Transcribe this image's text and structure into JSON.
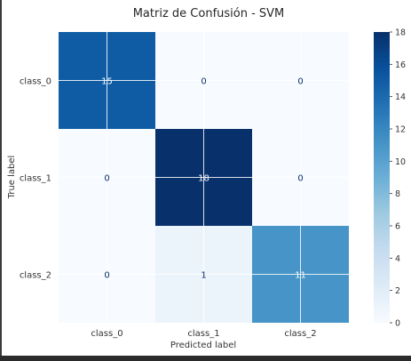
{
  "chart_data": {
    "type": "heatmap",
    "title": "Matriz de Confusión - SVM",
    "xlabel": "Predicted label",
    "ylabel": "True label",
    "x_categories": [
      "class_0",
      "class_1",
      "class_2"
    ],
    "y_categories": [
      "class_0",
      "class_1",
      "class_2"
    ],
    "values": [
      [
        15,
        0,
        0
      ],
      [
        0,
        18,
        0
      ],
      [
        0,
        1,
        11
      ]
    ],
    "colorbar": {
      "min": 0,
      "max": 18,
      "ticks": [
        0,
        2,
        4,
        6,
        8,
        10,
        12,
        14,
        16,
        18
      ],
      "colormap": "Blues"
    },
    "grid": true,
    "colors": {
      "low": "#f7fbff",
      "high": "#08306b",
      "text_dark": "#08306b",
      "text_light": "#f7fbff"
    }
  }
}
